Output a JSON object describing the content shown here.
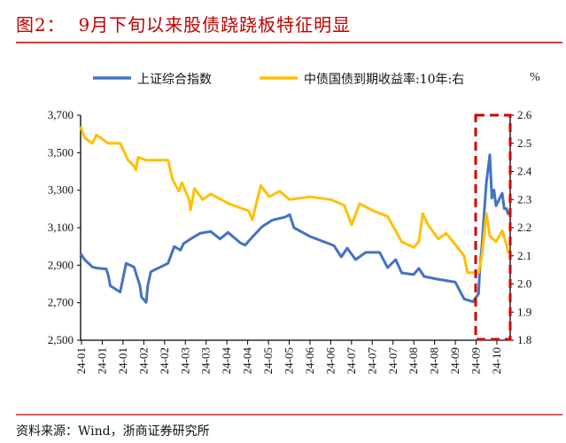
{
  "title": "图2：  9月下旬以来股债跷跷板特征明显",
  "source": "资料来源：Wind，浙商证券研究所",
  "chart_data": {
    "type": "line",
    "title": "图2：  9月下旬以来股债跷跷板特征明显",
    "left_axis": {
      "ylim": [
        2500,
        3700
      ],
      "ticks": [
        "2,500",
        "2,700",
        "2,900",
        "3,100",
        "3,300",
        "3,500",
        "3,700"
      ],
      "tick_values": [
        2500,
        2700,
        2900,
        3100,
        3300,
        3500,
        3700
      ]
    },
    "right_axis": {
      "unit": "%",
      "ylim": [
        1.8,
        2.6
      ],
      "ticks": [
        "1.8",
        "1.9",
        "2.0",
        "2.1",
        "2.2",
        "2.3",
        "2.4",
        "2.5",
        "2.6"
      ],
      "tick_values": [
        1.8,
        1.9,
        2.0,
        2.1,
        2.2,
        2.3,
        2.4,
        2.5,
        2.6
      ]
    },
    "x_tick_labels": [
      "24-01",
      "24-01",
      "24-01",
      "24-02",
      "24-02",
      "24-03",
      "24-03",
      "24-04",
      "24-04",
      "24-05",
      "24-05",
      "24-06",
      "24-06",
      "24-07",
      "24-07",
      "24-07",
      "24-08",
      "24-08",
      "24-09",
      "24-09",
      "24-10"
    ],
    "grid": false,
    "legend": "top",
    "highlight_box": {
      "from": "2024-09-24",
      "to": "2024-10-17",
      "color": "#d00000",
      "style": "dashed"
    },
    "series": [
      {
        "name": "上证综合指数",
        "axis": "left",
        "color": "#4472c4",
        "points": [
          [
            "2024-01-02",
            2962
          ],
          [
            "2024-01-04",
            2930
          ],
          [
            "2024-01-08",
            2890
          ],
          [
            "2024-01-10",
            2885
          ],
          [
            "2024-01-15",
            2880
          ],
          [
            "2024-01-16",
            2845
          ],
          [
            "2024-01-17",
            2790
          ],
          [
            "2024-01-22",
            2757
          ],
          [
            "2024-01-25",
            2910
          ],
          [
            "2024-01-29",
            2890
          ],
          [
            "2024-02-01",
            2790
          ],
          [
            "2024-02-02",
            2730
          ],
          [
            "2024-02-05",
            2702
          ],
          [
            "2024-02-06",
            2790
          ],
          [
            "2024-02-08",
            2865
          ],
          [
            "2024-02-19",
            2910
          ],
          [
            "2024-02-23",
            3000
          ],
          [
            "2024-02-27",
            2980
          ],
          [
            "2024-02-29",
            3015
          ],
          [
            "2024-03-05",
            3040
          ],
          [
            "2024-03-12",
            3070
          ],
          [
            "2024-03-20",
            3080
          ],
          [
            "2024-03-27",
            3040
          ],
          [
            "2024-04-02",
            3075
          ],
          [
            "2024-04-12",
            3020
          ],
          [
            "2024-04-16",
            3007
          ],
          [
            "2024-04-22",
            3050
          ],
          [
            "2024-04-30",
            3105
          ],
          [
            "2024-05-08",
            3140
          ],
          [
            "2024-05-17",
            3157
          ],
          [
            "2024-05-20",
            3170
          ],
          [
            "2024-05-23",
            3100
          ],
          [
            "2024-06-03",
            3053
          ],
          [
            "2024-06-19",
            3005
          ],
          [
            "2024-06-24",
            2944
          ],
          [
            "2024-06-28",
            2991
          ],
          [
            "2024-07-03",
            2930
          ],
          [
            "2024-07-08",
            2968
          ],
          [
            "2024-07-15",
            2968
          ],
          [
            "2024-07-19",
            2887
          ],
          [
            "2024-07-23",
            2930
          ],
          [
            "2024-07-26",
            2859
          ],
          [
            "2024-08-01",
            2850
          ],
          [
            "2024-08-05",
            2883
          ],
          [
            "2024-08-09",
            2840
          ],
          [
            "2024-08-19",
            2826
          ],
          [
            "2024-09-02",
            2810
          ],
          [
            "2024-09-10",
            2720
          ],
          [
            "2024-09-18",
            2705
          ],
          [
            "2024-09-23",
            2748
          ],
          [
            "2024-09-24",
            2863
          ],
          [
            "2024-09-26",
            3000
          ],
          [
            "2024-09-27",
            3088
          ],
          [
            "2024-09-30",
            3336
          ],
          [
            "2024-10-08",
            3489
          ],
          [
            "2024-10-09",
            3258
          ],
          [
            "2024-10-10",
            3301
          ],
          [
            "2024-10-11",
            3217
          ],
          [
            "2024-10-14",
            3284
          ],
          [
            "2024-10-15",
            3201
          ],
          [
            "2024-10-16",
            3202
          ],
          [
            "2024-10-17",
            3169
          ]
        ]
      },
      {
        "name": "中债国债到期收益率:10年:右",
        "axis": "right",
        "color": "#ffc000",
        "points": [
          [
            "2024-01-02",
            2.56
          ],
          [
            "2024-01-04",
            2.52
          ],
          [
            "2024-01-08",
            2.5
          ],
          [
            "2024-01-10",
            2.53
          ],
          [
            "2024-01-16",
            2.5
          ],
          [
            "2024-01-22",
            2.5
          ],
          [
            "2024-01-24",
            2.47
          ],
          [
            "2024-01-26",
            2.44
          ],
          [
            "2024-01-29",
            2.42
          ],
          [
            "2024-01-30",
            2.405
          ],
          [
            "2024-01-31",
            2.45
          ],
          [
            "2024-02-05",
            2.44
          ],
          [
            "2024-02-19",
            2.44
          ],
          [
            "2024-02-22",
            2.37
          ],
          [
            "2024-02-26",
            2.33
          ],
          [
            "2024-02-28",
            2.36
          ],
          [
            "2024-03-04",
            2.3
          ],
          [
            "2024-03-05",
            2.263
          ],
          [
            "2024-03-08",
            2.34
          ],
          [
            "2024-03-14",
            2.3
          ],
          [
            "2024-03-20",
            2.32
          ],
          [
            "2024-04-03",
            2.285
          ],
          [
            "2024-04-19",
            2.26
          ],
          [
            "2024-04-22",
            2.228
          ],
          [
            "2024-04-29",
            2.35
          ],
          [
            "2024-05-06",
            2.31
          ],
          [
            "2024-05-13",
            2.33
          ],
          [
            "2024-05-20",
            2.3
          ],
          [
            "2024-06-03",
            2.31
          ],
          [
            "2024-06-17",
            2.3
          ],
          [
            "2024-06-26",
            2.28
          ],
          [
            "2024-07-01",
            2.21
          ],
          [
            "2024-07-05",
            2.285
          ],
          [
            "2024-07-12",
            2.26
          ],
          [
            "2024-07-19",
            2.24
          ],
          [
            "2024-07-26",
            2.15
          ],
          [
            "2024-08-01",
            2.13
          ],
          [
            "2024-08-05",
            2.15
          ],
          [
            "2024-08-08",
            2.25
          ],
          [
            "2024-08-12",
            2.21
          ],
          [
            "2024-08-20",
            2.16
          ],
          [
            "2024-08-26",
            2.18
          ],
          [
            "2024-09-02",
            2.14
          ],
          [
            "2024-09-10",
            2.1
          ],
          [
            "2024-09-13",
            2.04
          ],
          [
            "2024-09-23",
            2.04
          ],
          [
            "2024-09-26",
            2.1
          ],
          [
            "2024-09-30",
            2.25
          ],
          [
            "2024-10-08",
            2.17
          ],
          [
            "2024-10-11",
            2.15
          ],
          [
            "2024-10-14",
            2.19
          ],
          [
            "2024-10-16",
            2.14
          ],
          [
            "2024-10-17",
            2.11
          ]
        ]
      }
    ]
  }
}
